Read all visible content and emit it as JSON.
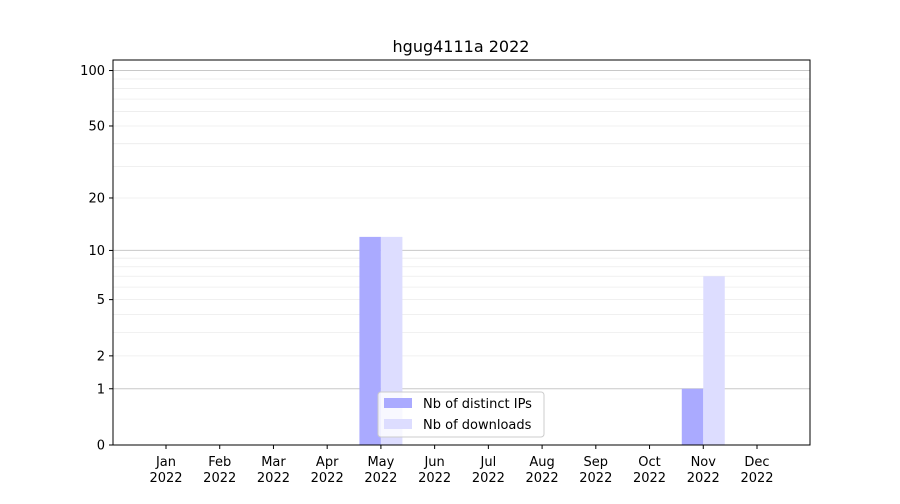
{
  "chart_data": {
    "type": "bar",
    "title": "hgug4111a 2022",
    "xlabel": "",
    "ylabel": "",
    "yscale": "symlog",
    "ylim": [
      0,
      114
    ],
    "yticks": [
      0,
      1,
      2,
      5,
      10,
      20,
      50,
      100
    ],
    "grid": true,
    "legend_position": "bottom-center",
    "categories": [
      "Jan\n2022",
      "Feb\n2022",
      "Mar\n2022",
      "Apr\n2022",
      "May\n2022",
      "Jun\n2022",
      "Jul\n2022",
      "Aug\n2022",
      "Sep\n2022",
      "Oct\n2022",
      "Nov\n2022",
      "Dec\n2022"
    ],
    "series": [
      {
        "name": "Nb of distinct IPs",
        "color": "#aaaaff",
        "values": [
          0,
          0,
          0,
          0,
          12,
          0,
          0,
          0,
          0,
          0,
          1,
          0
        ]
      },
      {
        "name": "Nb of downloads",
        "color": "#ddddff",
        "values": [
          0,
          0,
          0,
          0,
          12,
          0,
          0,
          0,
          0,
          0,
          7,
          0
        ]
      }
    ]
  }
}
